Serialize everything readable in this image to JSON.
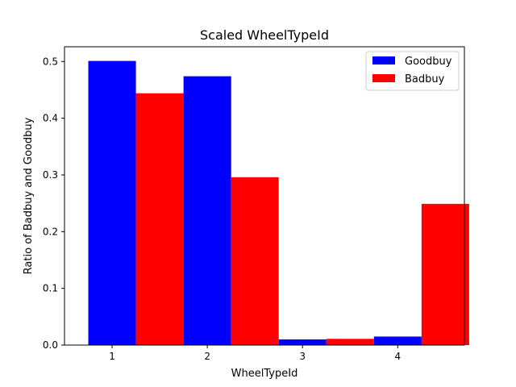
{
  "chart_data": {
    "type": "bar",
    "title": "Scaled WheelTypeId",
    "xlabel": "WheelTypeId",
    "ylabel": "Ratio of Badbuy and Goodbuy",
    "categories": [
      "1",
      "2",
      "3",
      "4"
    ],
    "series": [
      {
        "name": "Goodbuy",
        "color": "#0000ff",
        "values": [
          0.501,
          0.474,
          0.01,
          0.015
        ]
      },
      {
        "name": "Badbuy",
        "color": "#ff0000",
        "values": [
          0.444,
          0.296,
          0.011,
          0.249
        ]
      }
    ],
    "yticks": [
      "0.0",
      "0.1",
      "0.2",
      "0.3",
      "0.4",
      "0.5"
    ],
    "ylim": [
      0,
      0.526
    ],
    "xlim": [
      0.5,
      4.7
    ],
    "grid": false,
    "legend": "top-right"
  }
}
